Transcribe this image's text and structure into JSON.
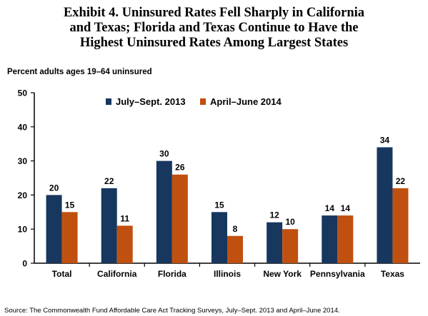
{
  "title_lines": [
    "Exhibit 4. Uninsured Rates Fell Sharply in California",
    "and Texas; Florida and Texas Continue to Have the",
    "Highest Uninsured Rates Among Largest States"
  ],
  "source": "Source: The Commonwealth Fund Affordable Care Act Tracking Surveys, July–Sept. 2013 and April–June 2014.",
  "chart_data": {
    "type": "bar",
    "title": "Exhibit 4. Uninsured Rates Fell Sharply in California and Texas; Florida and Texas Continue to Have the Highest Uninsured Rates Among Largest States",
    "ylabel": "Percent adults ages 19–64 uninsured",
    "xlabel": "",
    "categories": [
      "Total",
      "California",
      "Florida",
      "Illinois",
      "New York",
      "Pennsylvania",
      "Texas"
    ],
    "series": [
      {
        "name": "July–Sept. 2013",
        "values": [
          20,
          22,
          30,
          15,
          12,
          14,
          34
        ],
        "color": "#17375e"
      },
      {
        "name": "April–June 2014",
        "values": [
          15,
          11,
          26,
          8,
          10,
          14,
          22
        ],
        "color": "#c0500f"
      }
    ],
    "ylim": [
      0,
      50
    ],
    "yticks": [
      0,
      10,
      20,
      30,
      40,
      50
    ],
    "grid": false,
    "legend_position": "top"
  }
}
